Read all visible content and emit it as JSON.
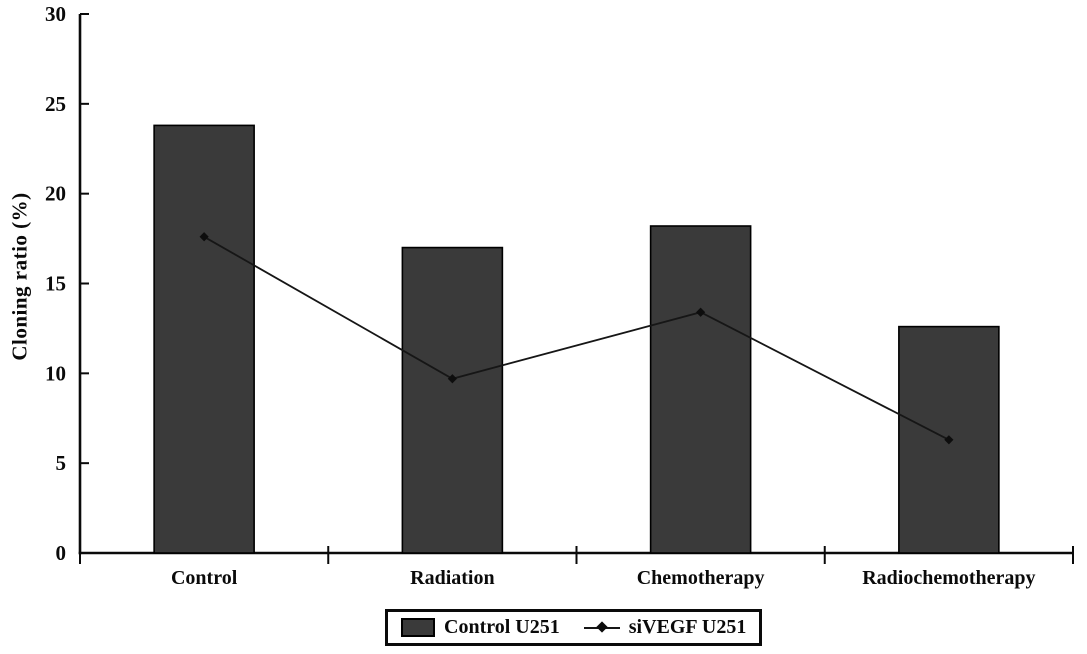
{
  "figure": {
    "background": "#ffffff",
    "axis_color": "#0a0a0a",
    "text_color": "#0a0a0a"
  },
  "chart_data": {
    "type": "bar",
    "combo": "bar with line overlay",
    "title": "",
    "xlabel": "",
    "ylabel": "Cloning ratio (%)",
    "categories": [
      "Control",
      "Radiation",
      "Chemotherapy",
      "Radiochemotherapy"
    ],
    "series": [
      {
        "name": "Control U251",
        "kind": "bar",
        "values": [
          23.8,
          17.0,
          18.2,
          12.6
        ],
        "fill": "#3a3a3a",
        "stroke": "#000000"
      },
      {
        "name": "siVEGF U251",
        "kind": "line",
        "values": [
          17.6,
          9.7,
          13.4,
          6.3
        ],
        "stroke": "#161616",
        "marker": "diamond",
        "marker_color": "#0d0d0d"
      }
    ],
    "ylim": [
      0,
      30
    ],
    "yticks": [
      0,
      5,
      10,
      15,
      20,
      25,
      30
    ],
    "grid": false,
    "legend_position": "bottom-center"
  },
  "legend": {
    "items": [
      {
        "label": "Control U251",
        "swatch": "bar"
      },
      {
        "label": "siVEGF U251",
        "swatch": "line-diamond"
      }
    ]
  }
}
